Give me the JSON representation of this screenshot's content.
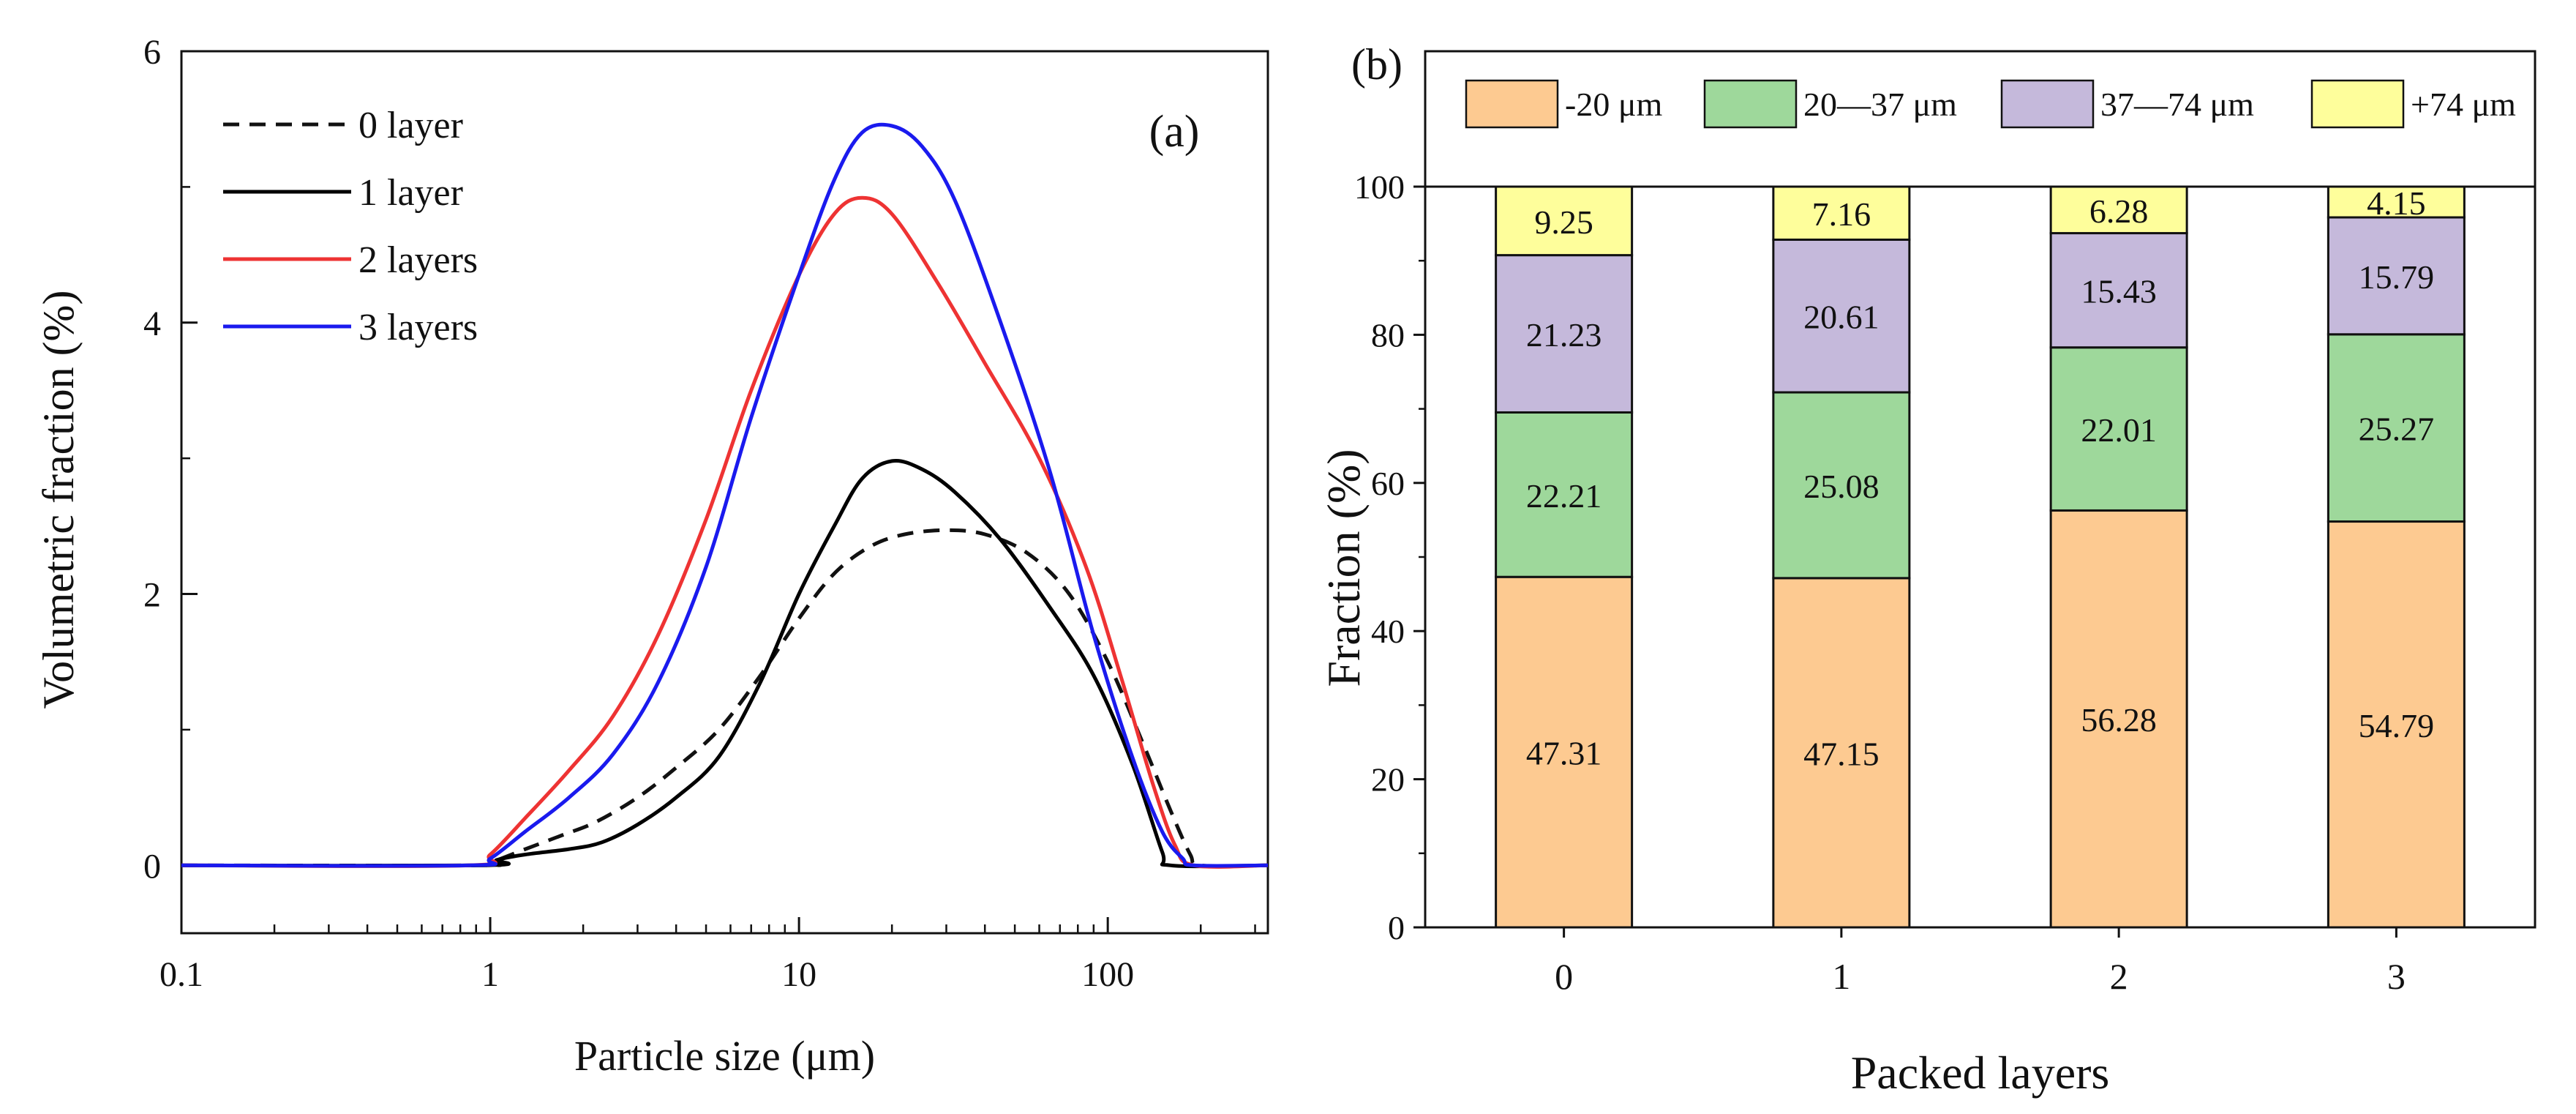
{
  "chart_data": [
    {
      "panel_label": "(a)",
      "type": "line",
      "xscale": "log",
      "xlabel": "Particle size (μm)",
      "ylabel": "Volumetric fraction (%)",
      "xlim": [
        0.1,
        330
      ],
      "ylim": [
        -0.5,
        6
      ],
      "xticks": [
        {
          "value": 0.1,
          "label": "0.1"
        },
        {
          "value": 1,
          "label": "1"
        },
        {
          "value": 10,
          "label": "10"
        },
        {
          "value": 100,
          "label": "100"
        }
      ],
      "yticks": [
        {
          "value": 0,
          "label": "0"
        },
        {
          "value": 2,
          "label": "2"
        },
        {
          "value": 4,
          "label": "4"
        },
        {
          "value": 6,
          "label": "6"
        }
      ],
      "series": [
        {
          "name": "0 layer",
          "color": "#111111",
          "dash": "dashed",
          "points": [
            [
              0.1,
              0
            ],
            [
              0.9,
              0
            ],
            [
              1.0,
              0.02
            ],
            [
              1.3,
              0.12
            ],
            [
              1.7,
              0.22
            ],
            [
              2.2,
              0.32
            ],
            [
              3,
              0.5
            ],
            [
              4,
              0.72
            ],
            [
              5.5,
              1.0
            ],
            [
              7.5,
              1.4
            ],
            [
              10,
              1.82
            ],
            [
              13,
              2.15
            ],
            [
              17,
              2.35
            ],
            [
              22,
              2.44
            ],
            [
              30,
              2.47
            ],
            [
              40,
              2.44
            ],
            [
              55,
              2.3
            ],
            [
              75,
              2.0
            ],
            [
              100,
              1.5
            ],
            [
              130,
              0.9
            ],
            [
              160,
              0.4
            ],
            [
              185,
              0.08
            ],
            [
              200,
              0
            ],
            [
              330,
              0
            ]
          ]
        },
        {
          "name": "1 layer",
          "color": "#000000",
          "dash": "solid",
          "points": [
            [
              0.1,
              0
            ],
            [
              0.95,
              0
            ],
            [
              1.05,
              0.04
            ],
            [
              1.3,
              0.08
            ],
            [
              1.8,
              0.12
            ],
            [
              2.3,
              0.17
            ],
            [
              3,
              0.3
            ],
            [
              4,
              0.5
            ],
            [
              5.5,
              0.8
            ],
            [
              7.5,
              1.35
            ],
            [
              10,
              2.0
            ],
            [
              13,
              2.5
            ],
            [
              16,
              2.85
            ],
            [
              20,
              2.98
            ],
            [
              25,
              2.92
            ],
            [
              32,
              2.75
            ],
            [
              45,
              2.4
            ],
            [
              65,
              1.9
            ],
            [
              90,
              1.4
            ],
            [
              120,
              0.75
            ],
            [
              150,
              0.1
            ],
            [
              160,
              0
            ],
            [
              330,
              0
            ]
          ]
        },
        {
          "name": "2 layers",
          "color": "#ee3333",
          "dash": "solid",
          "points": [
            [
              0.1,
              0
            ],
            [
              0.85,
              0
            ],
            [
              1.0,
              0.08
            ],
            [
              1.3,
              0.35
            ],
            [
              1.8,
              0.7
            ],
            [
              2.5,
              1.1
            ],
            [
              3.5,
              1.7
            ],
            [
              5,
              2.55
            ],
            [
              7,
              3.5
            ],
            [
              10,
              4.35
            ],
            [
              13,
              4.8
            ],
            [
              16,
              4.92
            ],
            [
              20,
              4.8
            ],
            [
              28,
              4.3
            ],
            [
              40,
              3.7
            ],
            [
              60,
              3.0
            ],
            [
              85,
              2.2
            ],
            [
              110,
              1.4
            ],
            [
              140,
              0.6
            ],
            [
              165,
              0.15
            ],
            [
              190,
              0
            ],
            [
              330,
              0
            ]
          ]
        },
        {
          "name": "3 layers",
          "color": "#1a1aee",
          "dash": "solid",
          "points": [
            [
              0.1,
              0
            ],
            [
              0.85,
              0
            ],
            [
              1.0,
              0.05
            ],
            [
              1.3,
              0.25
            ],
            [
              1.8,
              0.5
            ],
            [
              2.5,
              0.82
            ],
            [
              3.5,
              1.35
            ],
            [
              5,
              2.2
            ],
            [
              7,
              3.3
            ],
            [
              10,
              4.35
            ],
            [
              13,
              5.05
            ],
            [
              16,
              5.4
            ],
            [
              20,
              5.45
            ],
            [
              25,
              5.3
            ],
            [
              32,
              4.9
            ],
            [
              45,
              4.0
            ],
            [
              65,
              2.9
            ],
            [
              90,
              1.7
            ],
            [
              120,
              0.8
            ],
            [
              150,
              0.25
            ],
            [
              175,
              0.05
            ],
            [
              190,
              0
            ],
            [
              330,
              0
            ]
          ]
        }
      ]
    },
    {
      "panel_label": "(b)",
      "type": "bar",
      "stacked": true,
      "xlabel": "Packed layers",
      "ylabel": "Fraction (%)",
      "ylim": [
        0,
        100
      ],
      "yticks": [
        "0",
        "20",
        "40",
        "60",
        "80",
        "100"
      ],
      "categories": [
        "0",
        "1",
        "2",
        "3"
      ],
      "legend_placement": "top",
      "series": [
        {
          "name": "-20 μm",
          "color": "#fdca91",
          "values": [
            47.31,
            47.15,
            56.28,
            54.79
          ],
          "labels": [
            "47.31",
            "47.15",
            "56.28",
            "54.79"
          ]
        },
        {
          "name": "20—37 μm",
          "color": "#9ed89b",
          "values": [
            22.21,
            25.08,
            22.01,
            25.27
          ],
          "labels": [
            "22.21",
            "25.08",
            "22.01",
            "25.27"
          ]
        },
        {
          "name": "37—74 μm",
          "color": "#c5b9db",
          "values": [
            21.23,
            20.61,
            15.43,
            15.79
          ],
          "labels": [
            "21.23",
            "20.61",
            "15.43",
            "15.79"
          ]
        },
        {
          "name": "+74 μm",
          "color": "#fefe9b",
          "values": [
            9.25,
            7.16,
            6.28,
            4.15
          ],
          "labels": [
            "9.25",
            "7.16",
            "6.28",
            "4.15"
          ]
        }
      ]
    }
  ]
}
